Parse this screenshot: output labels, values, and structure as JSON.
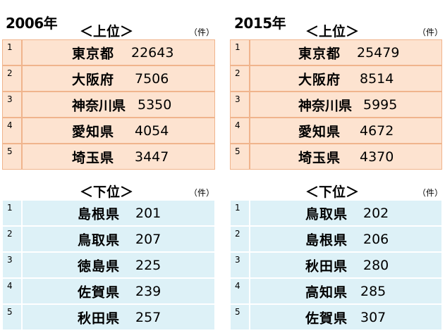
{
  "panels": [
    {
      "year": "2006年",
      "upper": {
        "label": "＜上位＞",
        "unit": "（件）",
        "rows": [
          {
            "rank": "1",
            "name": "東京都",
            "count": "22643"
          },
          {
            "rank": "2",
            "name": "大阪府",
            "count": "7506"
          },
          {
            "rank": "3",
            "name": "神奈川県",
            "count": "5350"
          },
          {
            "rank": "4",
            "name": "愛知県",
            "count": "4054"
          },
          {
            "rank": "5",
            "name": "埼玉県",
            "count": "3447"
          }
        ]
      },
      "lower": {
        "label": "＜下位＞",
        "unit": "（件）",
        "rows": [
          {
            "rank": "1",
            "name": "島根県",
            "count": "201"
          },
          {
            "rank": "2",
            "name": "鳥取県",
            "count": "207"
          },
          {
            "rank": "3",
            "name": "徳島県",
            "count": "225"
          },
          {
            "rank": "4",
            "name": "佐賀県",
            "count": "239"
          },
          {
            "rank": "5",
            "name": "秋田県",
            "count": "257"
          }
        ]
      }
    },
    {
      "year": "2015年",
      "upper": {
        "label": "＜上位＞",
        "unit": "（件）",
        "rows": [
          {
            "rank": "1",
            "name": "東京都",
            "count": "25479"
          },
          {
            "rank": "2",
            "name": "大阪府",
            "count": "8514"
          },
          {
            "rank": "3",
            "name": "神奈川県",
            "count": "5995"
          },
          {
            "rank": "4",
            "name": "愛知県",
            "count": "4672"
          },
          {
            "rank": "5",
            "name": "埼玉県",
            "count": "4370"
          }
        ]
      },
      "lower": {
        "label": "＜下位＞",
        "unit": "（件）",
        "rows": [
          {
            "rank": "1",
            "name": "鳥取県",
            "count": "202"
          },
          {
            "rank": "2",
            "name": "島根県",
            "count": "206"
          },
          {
            "rank": "3",
            "name": "秋田県",
            "count": "280"
          },
          {
            "rank": "4",
            "name": "高知県",
            "count": "285"
          },
          {
            "rank": "5",
            "name": "佐賀県",
            "count": "307"
          }
        ]
      }
    }
  ]
}
